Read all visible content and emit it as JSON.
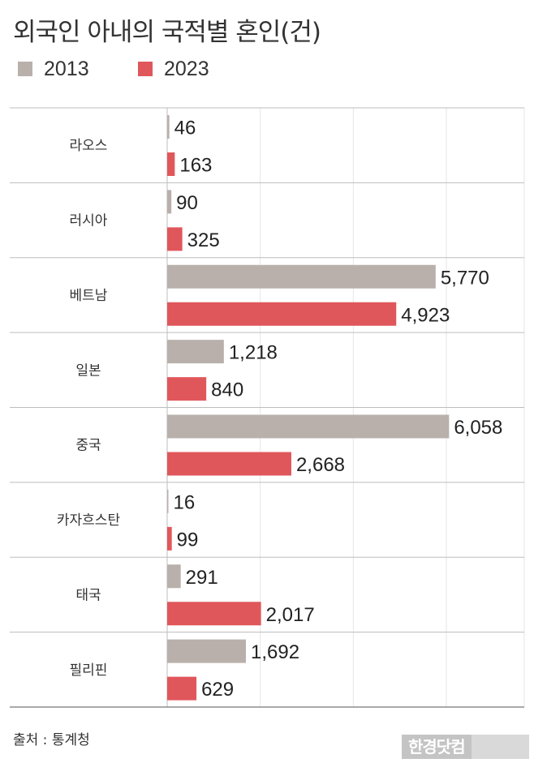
{
  "chart_data": {
    "type": "bar",
    "orientation": "horizontal",
    "title": "외국인 아내의 국적별 혼인(건)",
    "categories": [
      "라오스",
      "러시아",
      "베트남",
      "일본",
      "중국",
      "카자흐스탄",
      "태국",
      "필리핀"
    ],
    "series": [
      {
        "name": "2013",
        "color": "#b9b0ab",
        "values": [
          46,
          90,
          5770,
          1218,
          6058,
          16,
          291,
          1692
        ],
        "labels": [
          "46",
          "90",
          "5,770",
          "1,218",
          "6,058",
          "16",
          "291",
          "1,692"
        ]
      },
      {
        "name": "2023",
        "color": "#e0575b",
        "values": [
          163,
          325,
          4923,
          840,
          2668,
          99,
          2017,
          629
        ],
        "labels": [
          "163",
          "325",
          "4,923",
          "840",
          "2,668",
          "99",
          "2,017",
          "629"
        ]
      }
    ],
    "xlim": [
      0,
      7500
    ],
    "grid": true,
    "legend_position": "top-left"
  },
  "source": "출처 : 통계청",
  "logo": "한경닷컴"
}
